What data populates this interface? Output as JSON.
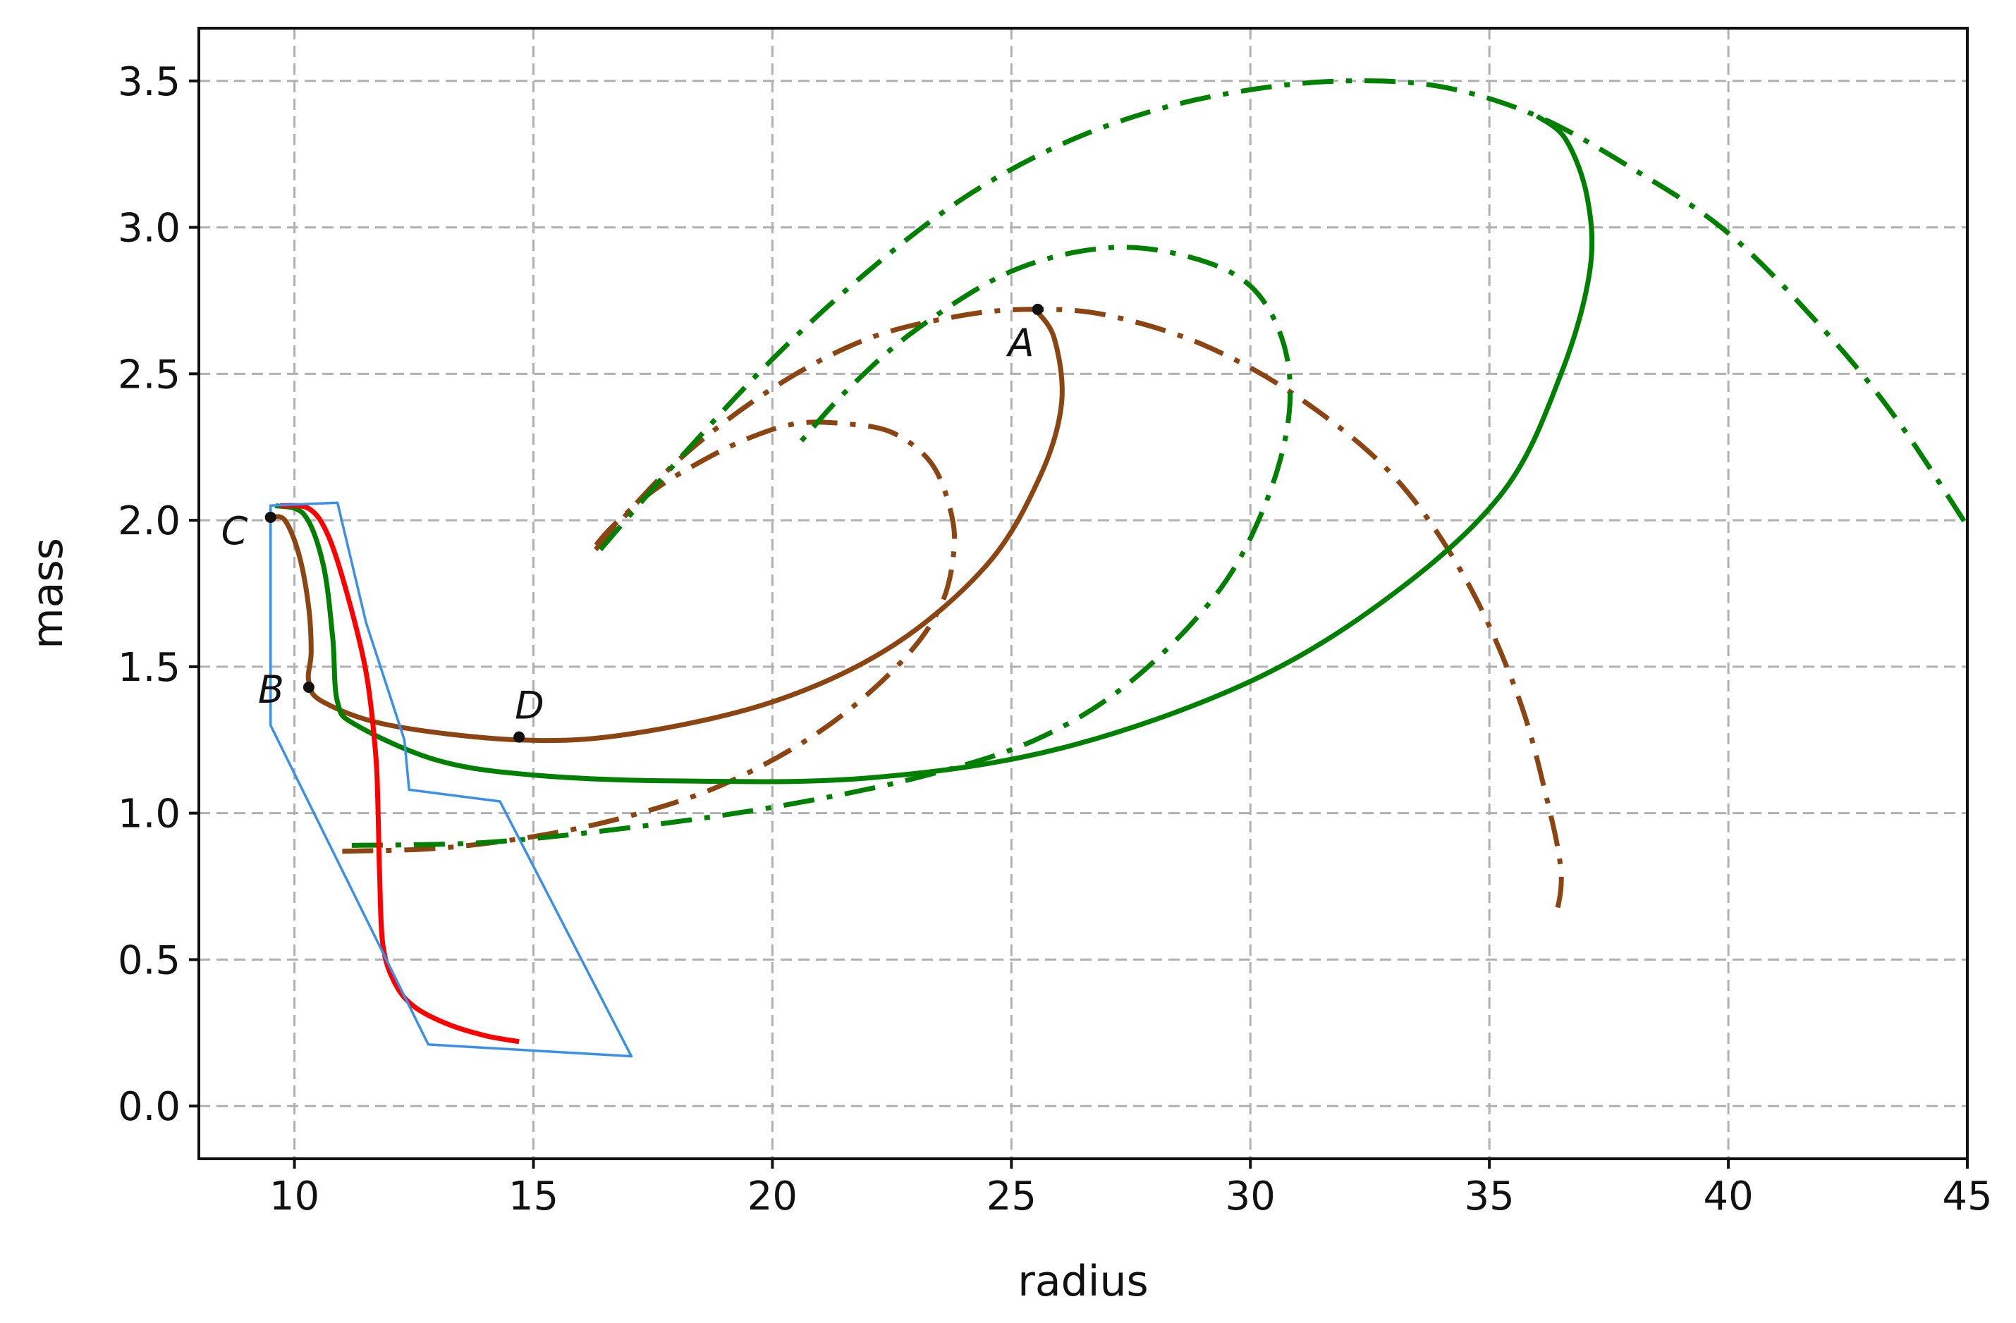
{
  "chart_data": {
    "type": "line",
    "xlabel": "radius",
    "ylabel": "mass",
    "xlim": [
      8,
      45
    ],
    "ylim": [
      -0.18,
      3.68
    ],
    "x_ticks": [
      10,
      15,
      20,
      25,
      30,
      35,
      40,
      45
    ],
    "x_tick_labels": [
      "10",
      "15",
      "20",
      "25",
      "30",
      "35",
      "40",
      "45"
    ],
    "y_ticks": [
      0.0,
      0.5,
      1.0,
      1.5,
      2.0,
      2.5,
      3.0,
      3.5
    ],
    "y_tick_labels": [
      "0.0",
      "0.5",
      "1.0",
      "1.5",
      "2.0",
      "2.5",
      "3.0",
      "3.5"
    ],
    "grid": true,
    "colors": {
      "brown": "#8B4513",
      "green": "#008000",
      "red": "#FF0000",
      "blue": "#3A8FE8",
      "grid": "#b0b0b0",
      "axes": "#111111"
    },
    "series": [
      {
        "color": "#8B4513",
        "style": "solid",
        "x": [
          9.5,
          9.8,
          10.1,
          10.3,
          10.35,
          10.3,
          10.6,
          12,
          14.7,
          17,
          20,
          22.5,
          24.5,
          25.6,
          26.05,
          25.9,
          25.5
        ],
        "y": [
          2.01,
          2.0,
          1.88,
          1.7,
          1.55,
          1.45,
          1.38,
          1.3,
          1.25,
          1.27,
          1.38,
          1.57,
          1.85,
          2.15,
          2.4,
          2.62,
          2.72
        ]
      },
      {
        "color": "#8B4513",
        "style": "dashdot",
        "x": [
          11,
          13,
          15,
          17,
          19,
          21,
          22.6,
          23.5,
          23.8,
          23.7,
          23.3,
          22.5,
          21.5,
          20.5,
          19.5,
          18.5,
          17.5,
          16.6,
          16.2
        ],
        "y": [
          0.87,
          0.88,
          0.92,
          0.99,
          1.1,
          1.28,
          1.5,
          1.7,
          1.9,
          2.05,
          2.2,
          2.3,
          2.33,
          2.33,
          2.28,
          2.2,
          2.1,
          1.97,
          1.89
        ]
      },
      {
        "color": "#8B4513",
        "style": "dashdot",
        "x": [
          16.3,
          18,
          20,
          22,
          24,
          25.5,
          27,
          29,
          31,
          33,
          34.5,
          35.6,
          36.2,
          36.5,
          36.4
        ],
        "y": [
          1.9,
          2.2,
          2.45,
          2.62,
          2.7,
          2.72,
          2.7,
          2.6,
          2.42,
          2.15,
          1.8,
          1.4,
          1.05,
          0.8,
          0.65
        ]
      },
      {
        "color": "#008000",
        "style": "solid",
        "x": [
          9.6,
          10.2,
          10.6,
          10.8,
          10.9,
          11.3,
          13,
          15,
          18,
          22,
          26,
          30,
          33,
          35.3,
          36.5,
          37.1,
          37.05,
          36.6,
          36
        ],
        "y": [
          2.05,
          2.02,
          1.85,
          1.6,
          1.38,
          1.3,
          1.18,
          1.13,
          1.11,
          1.12,
          1.22,
          1.45,
          1.75,
          2.1,
          2.5,
          2.85,
          3.1,
          3.3,
          3.38
        ]
      },
      {
        "color": "#008000",
        "style": "dashdot",
        "x": [
          11.2,
          14,
          17,
          20,
          23,
          25.5,
          27.5,
          29.3,
          30.3,
          30.8,
          30.7,
          30,
          28.7,
          27,
          25,
          23,
          21.6,
          20.6
        ],
        "y": [
          0.89,
          0.9,
          0.95,
          1.02,
          1.12,
          1.25,
          1.45,
          1.75,
          2.05,
          2.35,
          2.6,
          2.8,
          2.9,
          2.93,
          2.85,
          2.65,
          2.45,
          2.27
        ]
      },
      {
        "color": "#008000",
        "style": "dashdot",
        "x": [
          16.4,
          18,
          20,
          22,
          24,
          26,
          28,
          30,
          32,
          34,
          36,
          38,
          40,
          42,
          43.5,
          45
        ],
        "y": [
          1.9,
          2.2,
          2.55,
          2.85,
          3.1,
          3.28,
          3.4,
          3.47,
          3.5,
          3.48,
          3.38,
          3.2,
          2.98,
          2.65,
          2.35,
          1.98
        ]
      },
      {
        "color": "#FF0000",
        "style": "solid",
        "x": [
          9.7,
          10.3,
          10.7,
          11.1,
          11.5,
          11.7,
          11.75,
          11.78,
          11.85,
          12.1,
          12.5,
          13.2,
          14,
          14.7
        ],
        "y": [
          2.05,
          2.04,
          1.95,
          1.75,
          1.48,
          1.2,
          1.0,
          0.8,
          0.55,
          0.42,
          0.34,
          0.28,
          0.24,
          0.22
        ]
      },
      {
        "color": "#3A8FE8",
        "style": "polygon",
        "x": [
          9.5,
          10.9,
          11.5,
          12.3,
          12.4,
          14.3,
          17.05,
          12.8,
          9.5,
          9.5
        ],
        "y": [
          2.05,
          2.06,
          1.65,
          1.25,
          1.08,
          1.04,
          0.17,
          0.21,
          1.3,
          2.05
        ]
      }
    ],
    "points": [
      {
        "label": "A",
        "x": 25.55,
        "y": 2.72
      },
      {
        "label": "B",
        "x": 10.3,
        "y": 1.43
      },
      {
        "label": "C",
        "x": 9.5,
        "y": 2.01
      },
      {
        "label": "D",
        "x": 14.7,
        "y": 1.26
      }
    ]
  }
}
